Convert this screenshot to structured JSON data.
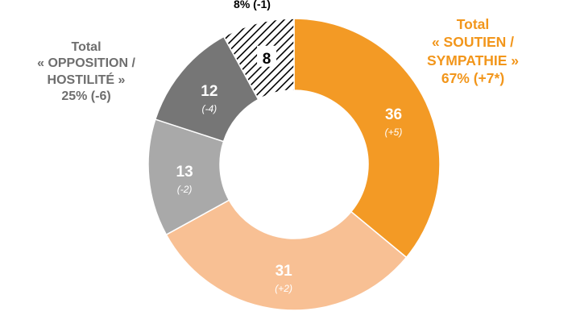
{
  "chart_data": {
    "type": "pie",
    "style": "donut",
    "slices": [
      {
        "value": 36,
        "change": "(+5)",
        "color": "#f39a25",
        "label_color": "#ffffff",
        "hatched": false
      },
      {
        "value": 31,
        "change": "(+2)",
        "color": "#f8c094",
        "label_color": "#ffffff",
        "hatched": false
      },
      {
        "value": 13,
        "change": "(-2)",
        "color": "#a9a9a9",
        "label_color": "#ffffff",
        "hatched": false
      },
      {
        "value": 12,
        "change": "(-4)",
        "color": "#767676",
        "label_color": "#ffffff",
        "hatched": false
      },
      {
        "value": 8,
        "change": "",
        "color": "#ffffff",
        "label_color": "#000000",
        "hatched": true
      }
    ],
    "groups": {
      "support": {
        "lines": [
          "Total",
          "« SOUTIEN /",
          "SYMPATHIE »",
          "67% (+7*)"
        ],
        "color": "#f2961b"
      },
      "opposition": {
        "lines": [
          "Total",
          "« OPPOSITION /",
          "HOSTILITÉ »",
          "25% (-6)"
        ],
        "color": "#6e6e6e"
      },
      "neutral": {
        "text": "8% (-1)",
        "color": "#000000"
      }
    }
  }
}
